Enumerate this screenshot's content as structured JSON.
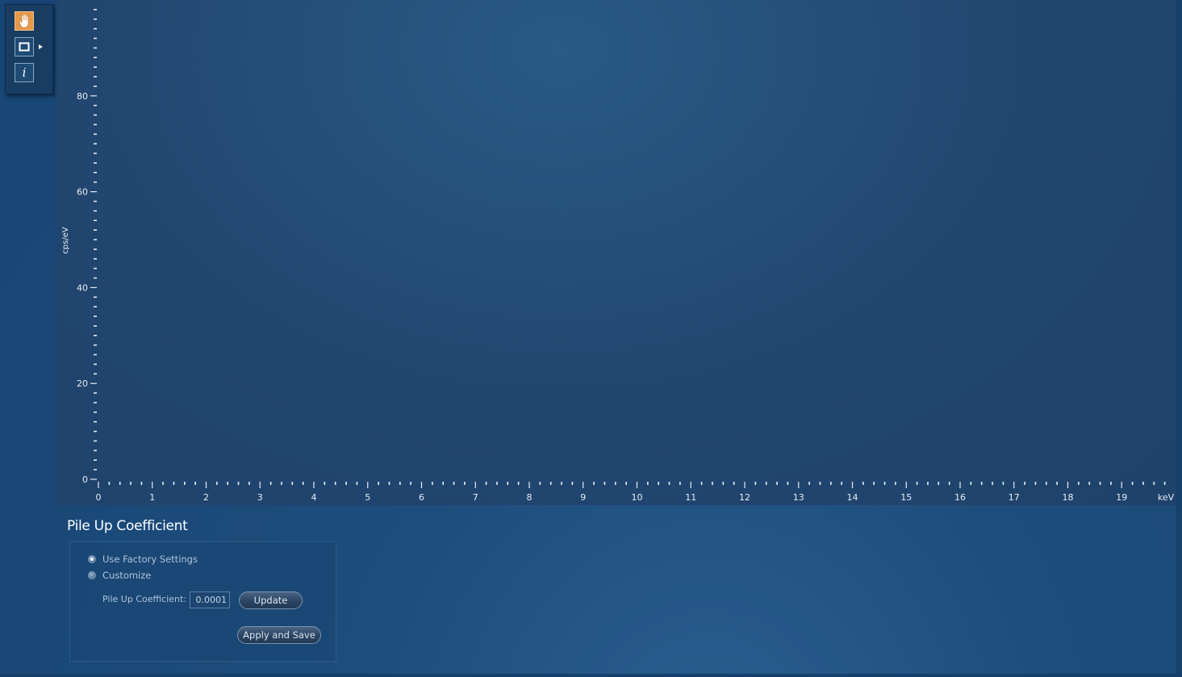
{
  "toolbar": {
    "tools": [
      {
        "name": "pan",
        "icon": "hand-icon",
        "active": true
      },
      {
        "name": "zoom-box",
        "icon": "square-icon",
        "active": false
      },
      {
        "name": "info",
        "icon": "info-icon",
        "label": "i",
        "active": false
      }
    ]
  },
  "chart_data": {
    "type": "line",
    "series": [],
    "xlabel": "keV",
    "ylabel": "cps/eV",
    "xlim": [
      0,
      20
    ],
    "ylim": [
      0,
      100
    ],
    "x_ticks": [
      "0",
      "1",
      "2",
      "3",
      "4",
      "5",
      "6",
      "7",
      "8",
      "9",
      "10",
      "11",
      "12",
      "13",
      "14",
      "15",
      "16",
      "17",
      "18",
      "19"
    ],
    "y_ticks": [
      "0",
      "20",
      "40",
      "60",
      "80"
    ],
    "grid": false
  },
  "pileup": {
    "title": "Pile Up Coefficient",
    "options": [
      {
        "label": "Use Factory Settings",
        "checked": true
      },
      {
        "label": "Customize",
        "checked": false
      }
    ],
    "coefficient_label": "Pile Up Coefficient:",
    "coefficient_value": "0.0001",
    "update_label": "Update",
    "apply_save_label": "Apply and Save"
  },
  "colors": {
    "background": "#1c4a78",
    "plot_background": "#21466f",
    "active_tool": "#e4984a",
    "text": "#e6edf5"
  }
}
